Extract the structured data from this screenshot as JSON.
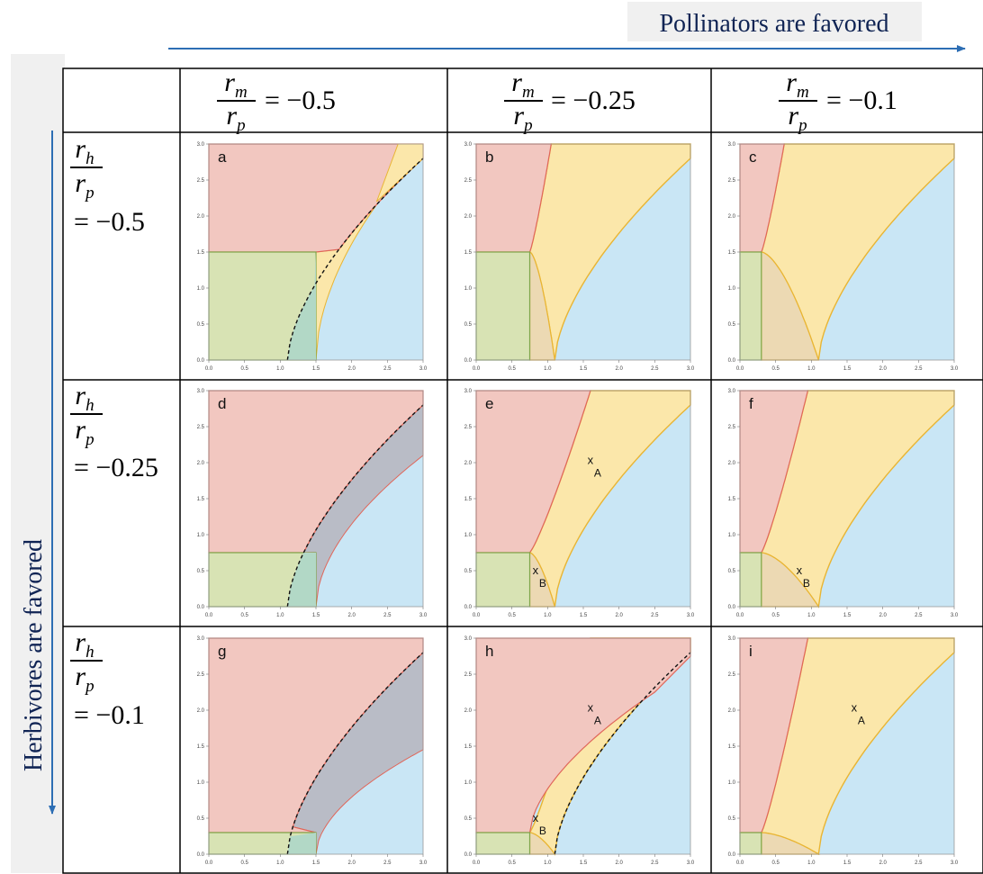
{
  "header": {
    "pollinators_label": "Pollinators are favored",
    "herbivores_label": "Herbivores are favored"
  },
  "columns": [
    {
      "var_top": "r",
      "var_top_sub": "m",
      "var_bottom": "r",
      "var_bottom_sub": "p",
      "value": "= −0.5"
    },
    {
      "var_top": "r",
      "var_top_sub": "m",
      "var_bottom": "r",
      "var_bottom_sub": "p",
      "value": "= −0.25"
    },
    {
      "var_top": "r",
      "var_top_sub": "m",
      "var_bottom": "r",
      "var_bottom_sub": "p",
      "value": "= −0.1"
    }
  ],
  "rows": [
    {
      "var_top": "r",
      "var_top_sub": "h",
      "var_bottom": "r",
      "var_bottom_sub": "p",
      "value": "= −0.5"
    },
    {
      "var_top": "r",
      "var_top_sub": "h",
      "var_bottom": "r",
      "var_bottom_sub": "p",
      "value": "= −0.25"
    },
    {
      "var_top": "r",
      "var_top_sub": "h",
      "var_bottom": "r",
      "var_bottom_sub": "p",
      "value": "= −0.1"
    }
  ],
  "axis": {
    "x_ticks": [
      "0.0",
      "0.5",
      "1.0",
      "1.5",
      "2.0",
      "2.5",
      "3.0"
    ],
    "y_ticks": [
      "0.0",
      "0.5",
      "1.0",
      "1.5",
      "2.0",
      "2.5",
      "3.0"
    ],
    "xlim": [
      0,
      3
    ],
    "ylim": [
      0,
      3
    ]
  },
  "colors": {
    "red_region": "#f2c7c0",
    "red_edge": "#e0675a",
    "yellow_region": "#fbe7aa",
    "yellow_edge": "#e9b533",
    "blue_region": "#c9e6f5",
    "green_region": "#d8e3b4",
    "green_edge": "#7fa64a",
    "teal_overlap": "#b2d8c6",
    "gray_region": "#b9bcc6",
    "tan_region": "#ecd9b3",
    "arrow": "#2d6eb4",
    "header_text": "#102454"
  },
  "panels": [
    {
      "letter": "a",
      "m": 0.5,
      "h": 0.5,
      "y0": 1.5,
      "dashed": true,
      "points": []
    },
    {
      "letter": "b",
      "m": 0.25,
      "h": 0.5,
      "y0": 1.5,
      "dashed": false,
      "points": []
    },
    {
      "letter": "c",
      "m": 0.1,
      "h": 0.5,
      "y0": 1.5,
      "dashed": false,
      "points": []
    },
    {
      "letter": "d",
      "m": 0.5,
      "h": 0.25,
      "y0": 0.75,
      "dashed": true,
      "points": []
    },
    {
      "letter": "e",
      "m": 0.25,
      "h": 0.25,
      "y0": 0.75,
      "dashed": false,
      "points": [
        {
          "label": "A",
          "x": 1.6,
          "y": 2.03
        },
        {
          "label": "B",
          "x": 0.83,
          "y": 0.5
        }
      ]
    },
    {
      "letter": "f",
      "m": 0.1,
      "h": 0.25,
      "y0": 0.75,
      "dashed": false,
      "points": [
        {
          "label": "B",
          "x": 0.83,
          "y": 0.5
        }
      ]
    },
    {
      "letter": "g",
      "m": 0.5,
      "h": 0.1,
      "y0": 0.3,
      "dashed": true,
      "points": []
    },
    {
      "letter": "h",
      "m": 0.25,
      "h": 0.1,
      "y0": 0.3,
      "dashed": true,
      "points": [
        {
          "label": "A",
          "x": 1.6,
          "y": 2.03
        },
        {
          "label": "B",
          "x": 0.83,
          "y": 0.5
        }
      ]
    },
    {
      "letter": "i",
      "m": 0.1,
      "h": 0.1,
      "y0": 0.3,
      "dashed": false,
      "points": [
        {
          "label": "A",
          "x": 1.6,
          "y": 2.03
        }
      ]
    }
  ],
  "point_marker": "x"
}
